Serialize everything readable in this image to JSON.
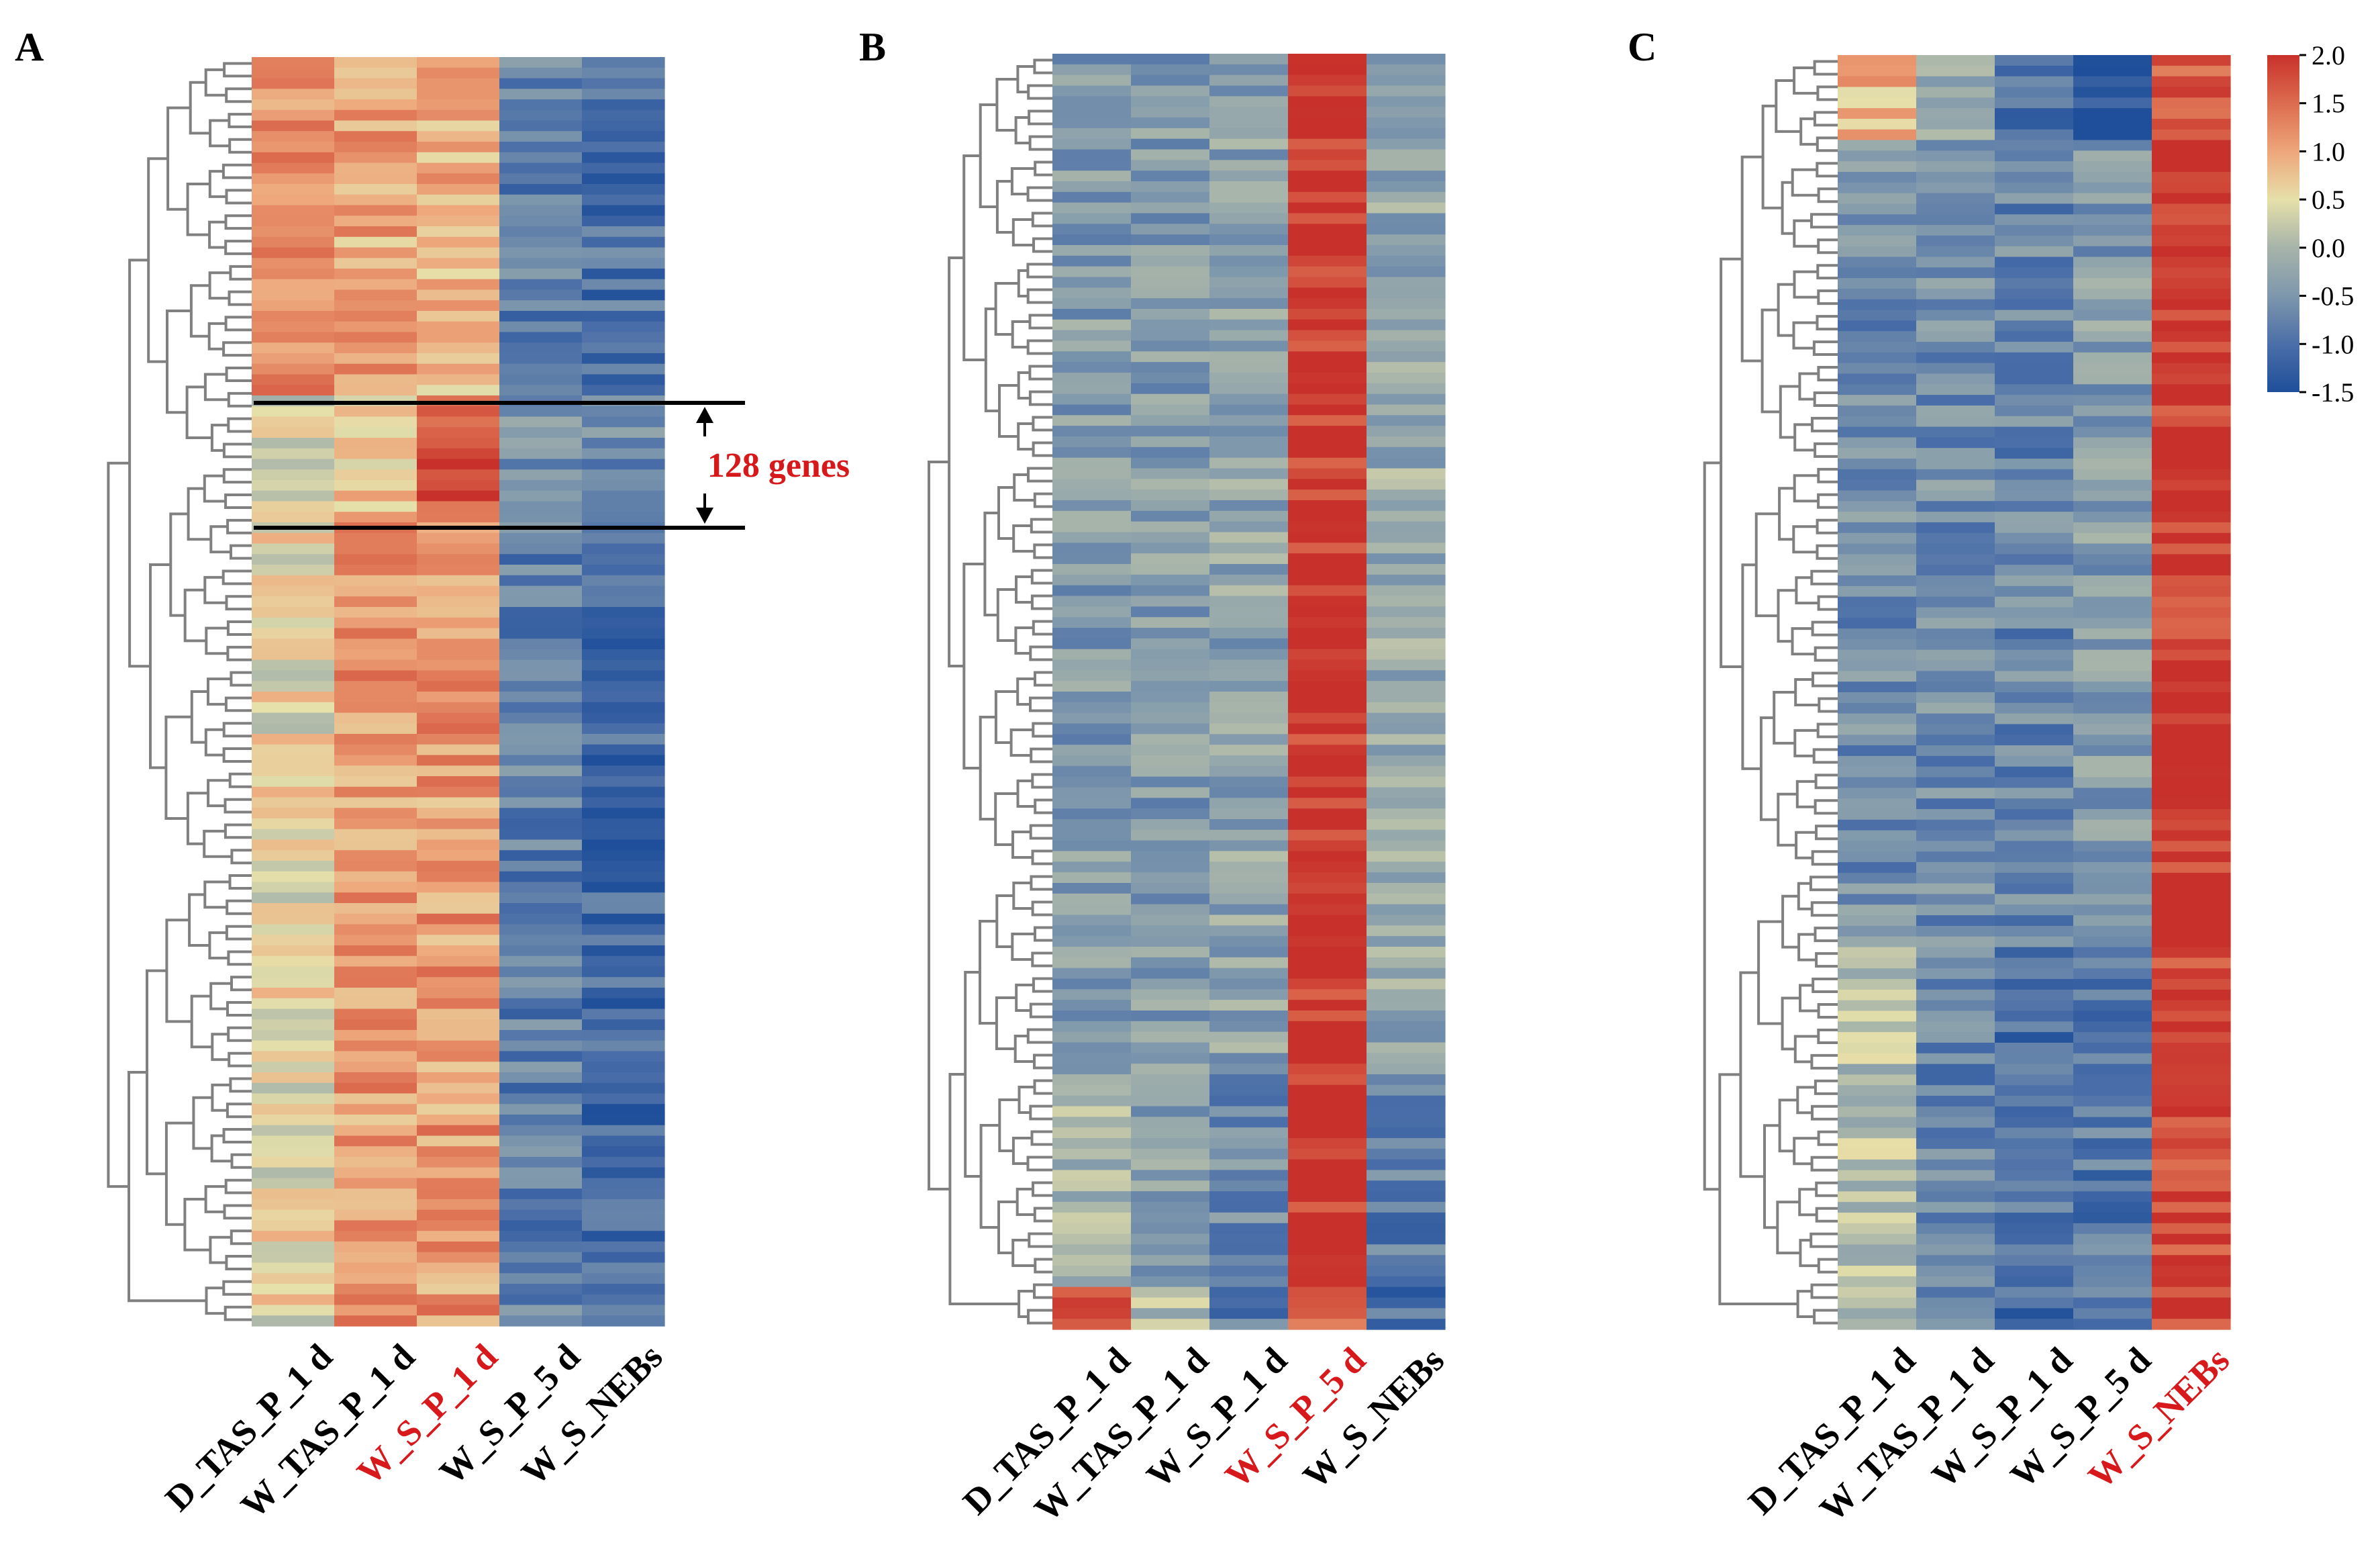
{
  "figure": {
    "panels": [
      {
        "letter": "A"
      },
      {
        "letter": "B"
      },
      {
        "letter": "C"
      }
    ],
    "annotation": {
      "text": "128 genes",
      "color": "#d7191c"
    },
    "colors": {
      "dendrogram": "#808080",
      "highlight_label": "#d7191c",
      "normal_label": "#000000",
      "colormap": [
        "#1f4f9a",
        "#4a6ea8",
        "#7f98ac",
        "#a7b4aa",
        "#e6e0aa",
        "#eea87c",
        "#dc6b4e",
        "#c8312b"
      ]
    }
  },
  "chart_data": [
    {
      "type": "heatmap",
      "panel": "A",
      "columns": [
        "D_TAS_P_1 d",
        "W_TAS_P_1 d",
        "W_S_P_1 d",
        "W_S_P_5 d",
        "W_S_NEBs"
      ],
      "highlight_column": "W_S_P_1 d",
      "row_groups": [
        {
          "fraction": 0.27,
          "values": [
            1.2,
            1.0,
            0.9,
            -0.8,
            -1.0
          ]
        },
        {
          "fraction": 0.1,
          "values": [
            0.3,
            0.7,
            1.8,
            -0.5,
            -0.7
          ],
          "label": "128 genes"
        },
        {
          "fraction": 0.63,
          "values": [
            0.5,
            1.1,
            1.1,
            -0.8,
            -1.1
          ]
        }
      ]
    },
    {
      "type": "heatmap",
      "panel": "B",
      "columns": [
        "D_TAS_P_1 d",
        "W_TAS_P_1 d",
        "W_S_P_1 d",
        "W_S_P_5 d",
        "W_S_NEBs"
      ],
      "highlight_column": "W_S_P_5 d",
      "row_groups": [
        {
          "fraction": 0.8,
          "values": [
            -0.4,
            -0.4,
            -0.3,
            2.0,
            -0.2
          ]
        },
        {
          "fraction": 0.17,
          "values": [
            0.0,
            -0.3,
            -0.6,
            2.0,
            -0.8
          ]
        },
        {
          "fraction": 0.03,
          "values": [
            1.6,
            0.0,
            -0.8,
            1.4,
            -1.0
          ]
        }
      ]
    },
    {
      "type": "heatmap",
      "panel": "C",
      "columns": [
        "D_TAS_P_1 d",
        "W_TAS_P_1 d",
        "W_S_P_1 d",
        "W_S_P_5 d",
        "W_S_NEBs"
      ],
      "highlight_column": "W_S_NEBs",
      "row_groups": [
        {
          "fraction": 0.07,
          "values": [
            0.9,
            -0.2,
            -1.1,
            -1.3,
            1.6
          ]
        },
        {
          "fraction": 0.63,
          "values": [
            -0.6,
            -0.6,
            -0.7,
            -0.4,
            2.0
          ]
        },
        {
          "fraction": 0.3,
          "values": [
            0.1,
            -0.7,
            -1.0,
            -0.9,
            1.9
          ]
        }
      ]
    }
  ],
  "colorbar": {
    "ticks": [
      "2.0",
      "1.5",
      "1.0",
      "0.5",
      "0.0",
      "-0.5",
      "-1.0",
      "-1.5"
    ],
    "range": [
      -1.5,
      2.0
    ]
  }
}
